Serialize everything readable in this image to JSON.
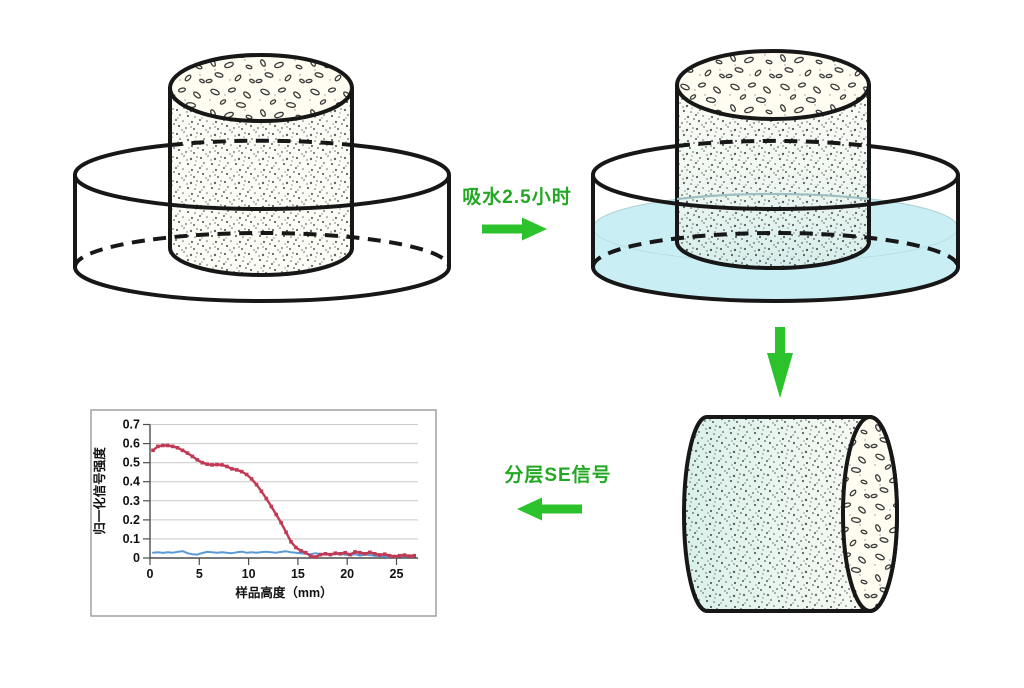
{
  "flow": {
    "soak_label": "吸水2.5小时",
    "signal_label": "分层SE信号"
  },
  "icons": {
    "soak_arrow": "right-arrow-icon",
    "transfer_arrow": "down-arrow-icon",
    "signal_arrow": "left-arrow-icon"
  },
  "colors": {
    "label_green": "#22a822",
    "arrow_green": "#2cc22c",
    "water": "#c9eef3",
    "red_series": "#c13a55",
    "blue_series": "#5b9bd5",
    "grid_line": "#c9c9c9",
    "axis_line": "#4d4d4d",
    "chart_frame": "#9a9a9a"
  },
  "chart_data": {
    "type": "line",
    "title": "",
    "xlabel": "样品高度（mm）",
    "ylabel": "归一化信号强度",
    "xlim": [
      0,
      27.5
    ],
    "ylim": [
      0,
      0.7
    ],
    "xticks": [
      0,
      5,
      10,
      15,
      20,
      25
    ],
    "xtick_labels": [
      "0",
      "5",
      "10",
      "15",
      "20",
      "25"
    ],
    "yticks": [
      0,
      0.1,
      0.2,
      0.3,
      0.4,
      0.5,
      0.6,
      0.7
    ],
    "ytick_labels": [
      "0",
      "0.1",
      "0.2",
      "0.3",
      "0.4",
      "0.5",
      "0.6",
      "0.7"
    ],
    "grid": true,
    "legend": "none",
    "x": [
      0.3,
      0.8,
      1.3,
      1.8,
      2.3,
      2.8,
      3.3,
      3.8,
      4.3,
      4.8,
      5.3,
      5.8,
      6.3,
      6.8,
      7.3,
      7.8,
      8.3,
      8.8,
      9.3,
      9.8,
      10.3,
      10.8,
      11.3,
      11.8,
      12.3,
      12.8,
      13.3,
      13.8,
      14.3,
      14.8,
      15.3,
      15.8,
      16.3,
      16.8,
      17.3,
      17.8,
      18.3,
      18.8,
      19.3,
      19.8,
      20.3,
      20.8,
      21.3,
      21.8,
      22.3,
      22.8,
      23.3,
      23.8,
      24.3,
      24.8,
      25.3,
      25.8,
      26.3,
      26.8
    ],
    "series": [
      {
        "name": "blue-series",
        "color": "#5b9bd5",
        "marker": "none",
        "values": [
          0.028,
          0.03,
          0.027,
          0.03,
          0.028,
          0.032,
          0.036,
          0.025,
          0.02,
          0.018,
          0.026,
          0.032,
          0.03,
          0.028,
          0.03,
          0.028,
          0.025,
          0.03,
          0.033,
          0.028,
          0.03,
          0.028,
          0.031,
          0.033,
          0.03,
          0.028,
          0.032,
          0.035,
          0.03,
          0.028,
          0.025,
          0.022,
          0.02,
          0.025,
          0.02,
          0.022,
          0.018,
          0.02,
          0.022,
          0.018,
          0.015,
          0.02,
          0.012,
          0.018,
          0.015,
          0.012,
          0.01,
          0.008,
          0.005,
          0.01,
          0.012,
          0.008,
          0.01,
          0.008
        ]
      },
      {
        "name": "red-series",
        "color": "#c13a55",
        "marker": "square",
        "values": [
          0.565,
          0.585,
          0.59,
          0.59,
          0.585,
          0.578,
          0.565,
          0.55,
          0.533,
          0.515,
          0.5,
          0.492,
          0.488,
          0.49,
          0.488,
          0.48,
          0.468,
          0.462,
          0.453,
          0.438,
          0.415,
          0.385,
          0.35,
          0.312,
          0.27,
          0.228,
          0.185,
          0.135,
          0.085,
          0.055,
          0.038,
          0.028,
          0.01,
          0.005,
          0.018,
          0.022,
          0.018,
          0.025,
          0.022,
          0.028,
          0.018,
          0.032,
          0.028,
          0.022,
          0.03,
          0.022,
          0.016,
          0.02,
          0.012,
          0.008,
          0.012,
          0.015,
          0.01,
          0.012
        ]
      }
    ]
  }
}
